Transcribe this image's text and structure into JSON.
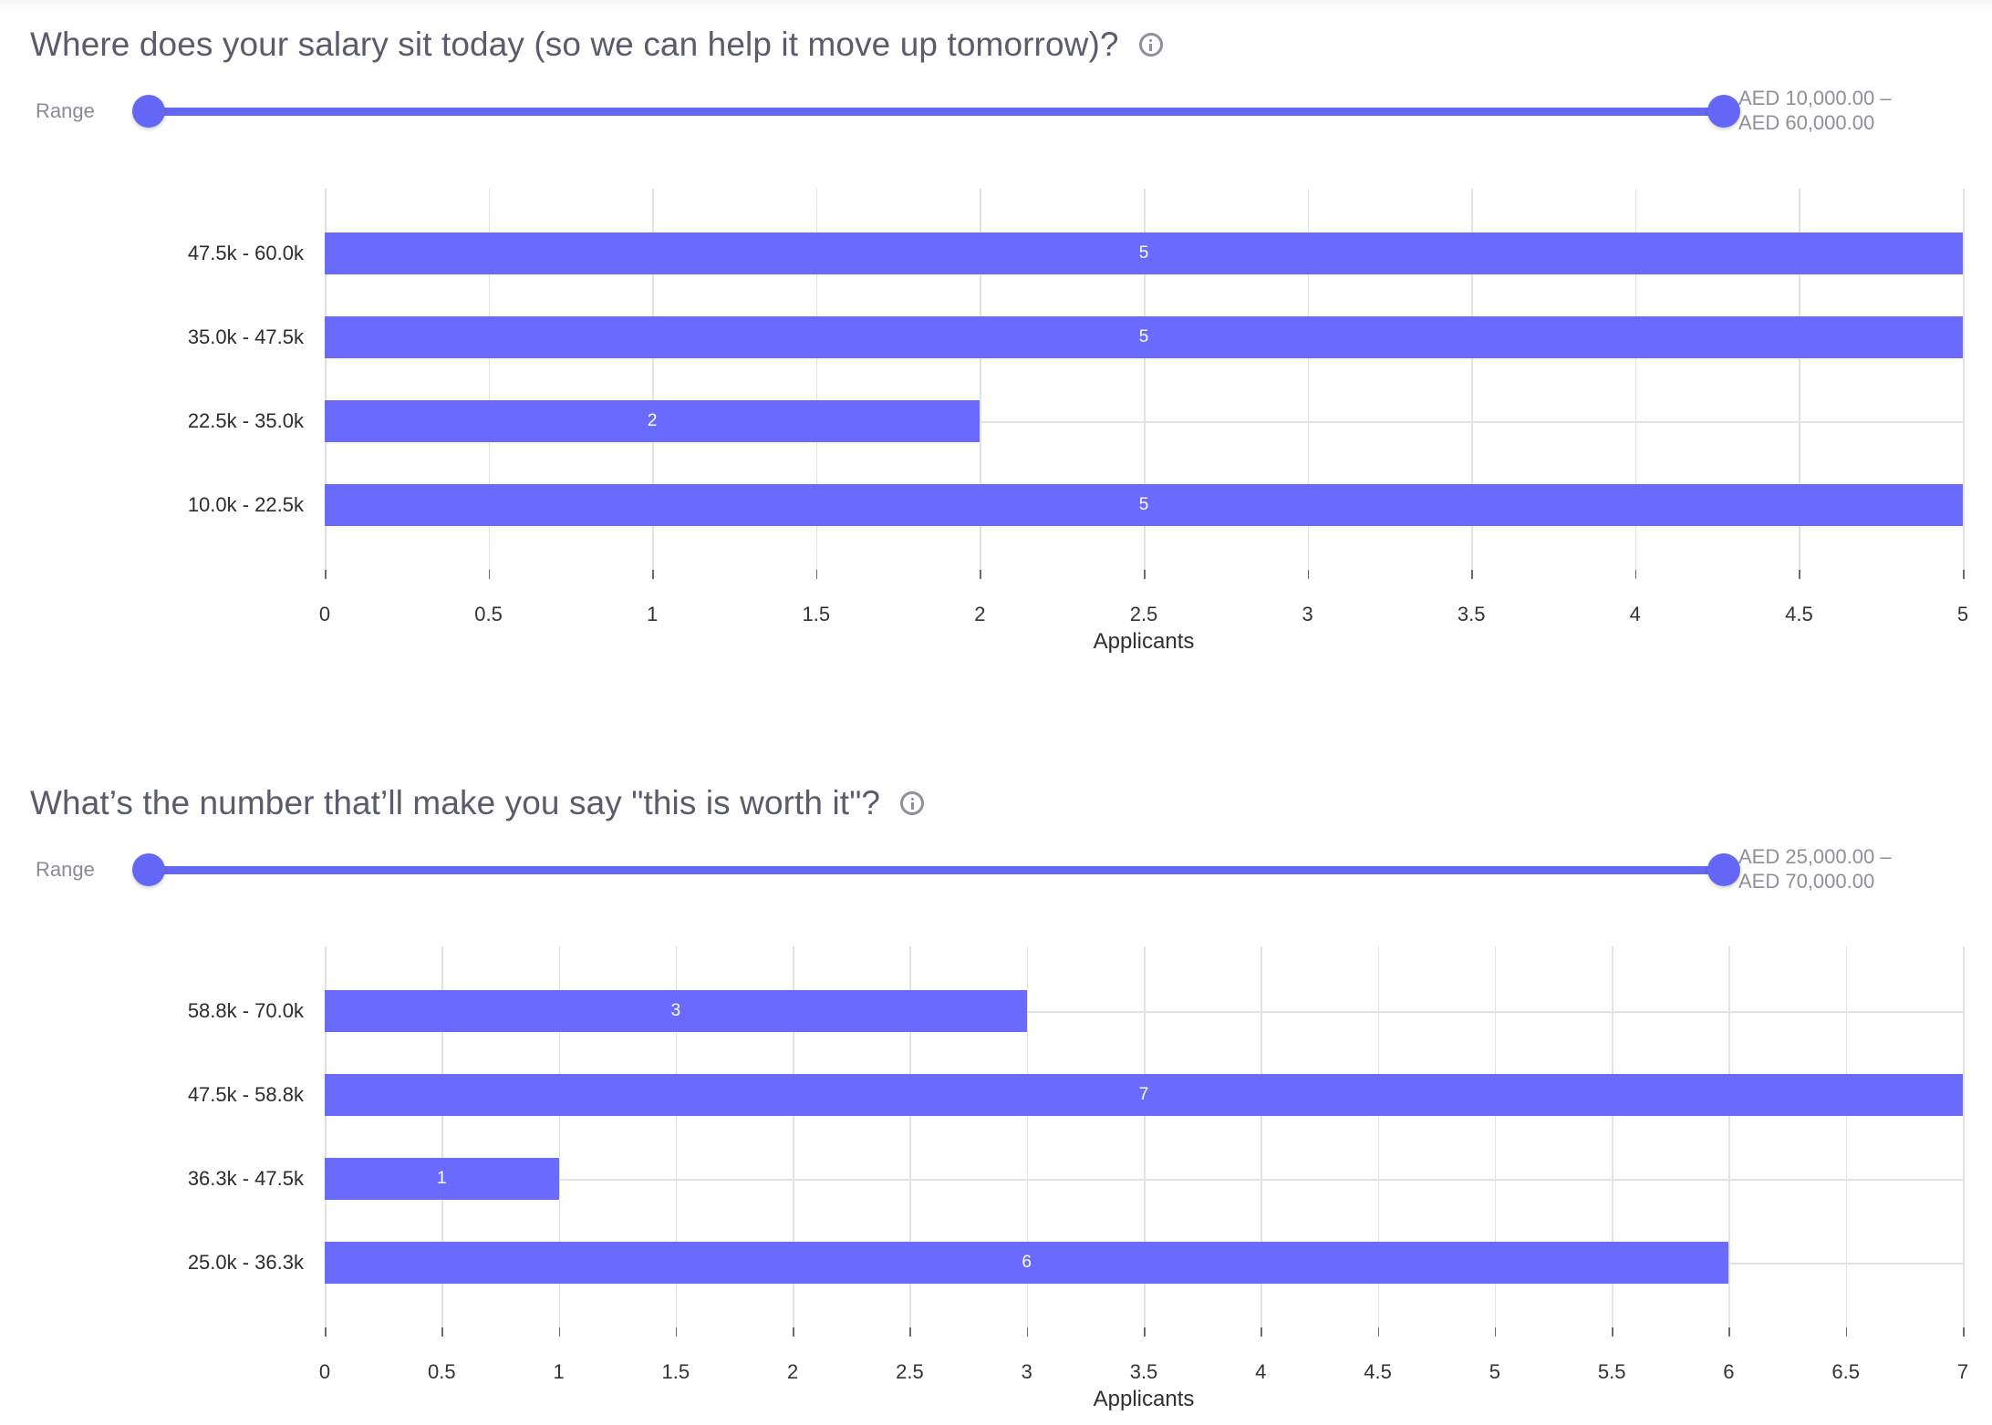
{
  "colors": {
    "bar": "#6a6afd",
    "slider": "#6467f6",
    "title_text": "#5a5c6c",
    "grid": "#e2e2e6"
  },
  "icons": {
    "info": "info-circle-icon"
  },
  "questions": [
    {
      "title": "Where does your salary sit today (so we can help it move up tomorrow)?",
      "range_label": "Range",
      "range_min": "AED 10,000.00 –",
      "range_max": "AED 60,000.00",
      "x_axis_title": "Applicants"
    },
    {
      "title": "What’s the number that’ll make you say \"this is worth it\"?",
      "range_label": "Range",
      "range_min": "AED 25,000.00 –",
      "range_max": "AED 70,000.00",
      "x_axis_title": "Applicants"
    }
  ],
  "chart_data": [
    {
      "type": "bar",
      "orientation": "horizontal",
      "title": "Where does your salary sit today (so we can help it move up tomorrow)?",
      "categories": [
        "47.5k - 60.0k",
        "35.0k - 47.5k",
        "22.5k - 35.0k",
        "10.0k - 22.5k"
      ],
      "values": [
        5,
        5,
        2,
        5
      ],
      "xlabel": "Applicants",
      "ylabel": "",
      "xlim": [
        0,
        5
      ],
      "xticks": [
        "0",
        "0.5",
        "1",
        "1.5",
        "2",
        "2.5",
        "3",
        "3.5",
        "4",
        "4.5",
        "5"
      ],
      "grid": true,
      "data_labels": true,
      "legend": "none"
    },
    {
      "type": "bar",
      "orientation": "horizontal",
      "title": "What’s the number that’ll make you say \"this is worth it\"?",
      "categories": [
        "58.8k - 70.0k",
        "47.5k - 58.8k",
        "36.3k - 47.5k",
        "25.0k - 36.3k"
      ],
      "values": [
        3,
        7,
        1,
        6
      ],
      "xlabel": "Applicants",
      "ylabel": "",
      "xlim": [
        0,
        7
      ],
      "xticks": [
        "0",
        "0.5",
        "1",
        "1.5",
        "2",
        "2.5",
        "3",
        "3.5",
        "4",
        "4.5",
        "5",
        "5.5",
        "6",
        "6.5",
        "7"
      ],
      "grid": true,
      "data_labels": true,
      "legend": "none"
    }
  ]
}
